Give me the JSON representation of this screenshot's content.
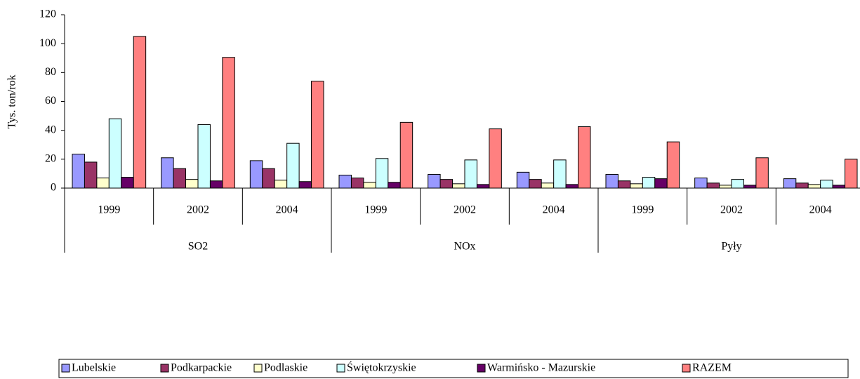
{
  "chart_data": {
    "type": "bar",
    "ylabel": "Tys. ton/rok",
    "categories": [
      "1999",
      "2002",
      "2004",
      "1999",
      "2002",
      "2004",
      "1999",
      "2002",
      "2004"
    ],
    "groups": [
      "SO2",
      "NOx",
      "Pyły"
    ],
    "series": [
      {
        "name": "Lubelskie",
        "color": "#9999ff",
        "values": [
          23.5,
          21,
          19,
          9,
          9.5,
          11,
          9.5,
          7,
          6.5
        ]
      },
      {
        "name": "Podkarpackie",
        "color": "#993366",
        "values": [
          18,
          13.5,
          13.5,
          7,
          6,
          6,
          5,
          3.5,
          3.5
        ]
      },
      {
        "name": "Podlaskie",
        "color": "#ffffcc",
        "values": [
          7,
          6,
          5.5,
          4,
          3,
          3.5,
          3,
          2,
          2.5
        ]
      },
      {
        "name": "Świętokrzyskie",
        "color": "#ccffff",
        "values": [
          48,
          44,
          31,
          20.5,
          19.5,
          19.5,
          7.5,
          6,
          5.5
        ]
      },
      {
        "name": "Warmińsko - Mazurskie",
        "color": "#660066",
        "values": [
          7.5,
          5,
          4.5,
          4,
          2.5,
          2.5,
          6.5,
          2,
          2
        ]
      },
      {
        "name": "RAZEM",
        "color": "#ff8080",
        "values": [
          105,
          90.5,
          74,
          45.5,
          41,
          42.5,
          32,
          21,
          20
        ]
      }
    ],
    "ylim": [
      0,
      120
    ],
    "yticks": [
      0,
      20,
      40,
      60,
      80,
      100,
      120
    ],
    "legend": "bottom"
  }
}
